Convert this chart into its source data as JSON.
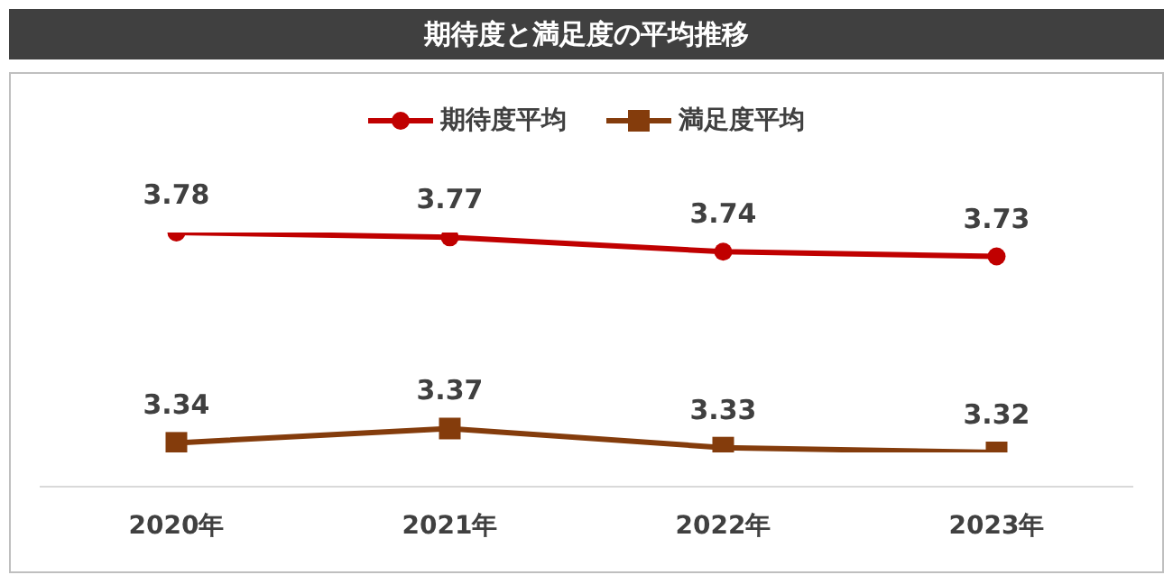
{
  "chart_data": {
    "type": "line",
    "title": "期待度と満足度の平均推移",
    "categories": [
      "2020年",
      "2021年",
      "2022年",
      "2023年"
    ],
    "series": [
      {
        "name": "期待度平均",
        "color": "#c00000",
        "marker": "circle",
        "values": [
          3.78,
          3.77,
          3.74,
          3.73
        ]
      },
      {
        "name": "満足度平均",
        "color": "#843c0c",
        "marker": "square",
        "values": [
          3.34,
          3.37,
          3.33,
          3.32
        ]
      }
    ],
    "tick_labels": "x",
    "data_labels": true,
    "legend": "top",
    "grid": false
  }
}
